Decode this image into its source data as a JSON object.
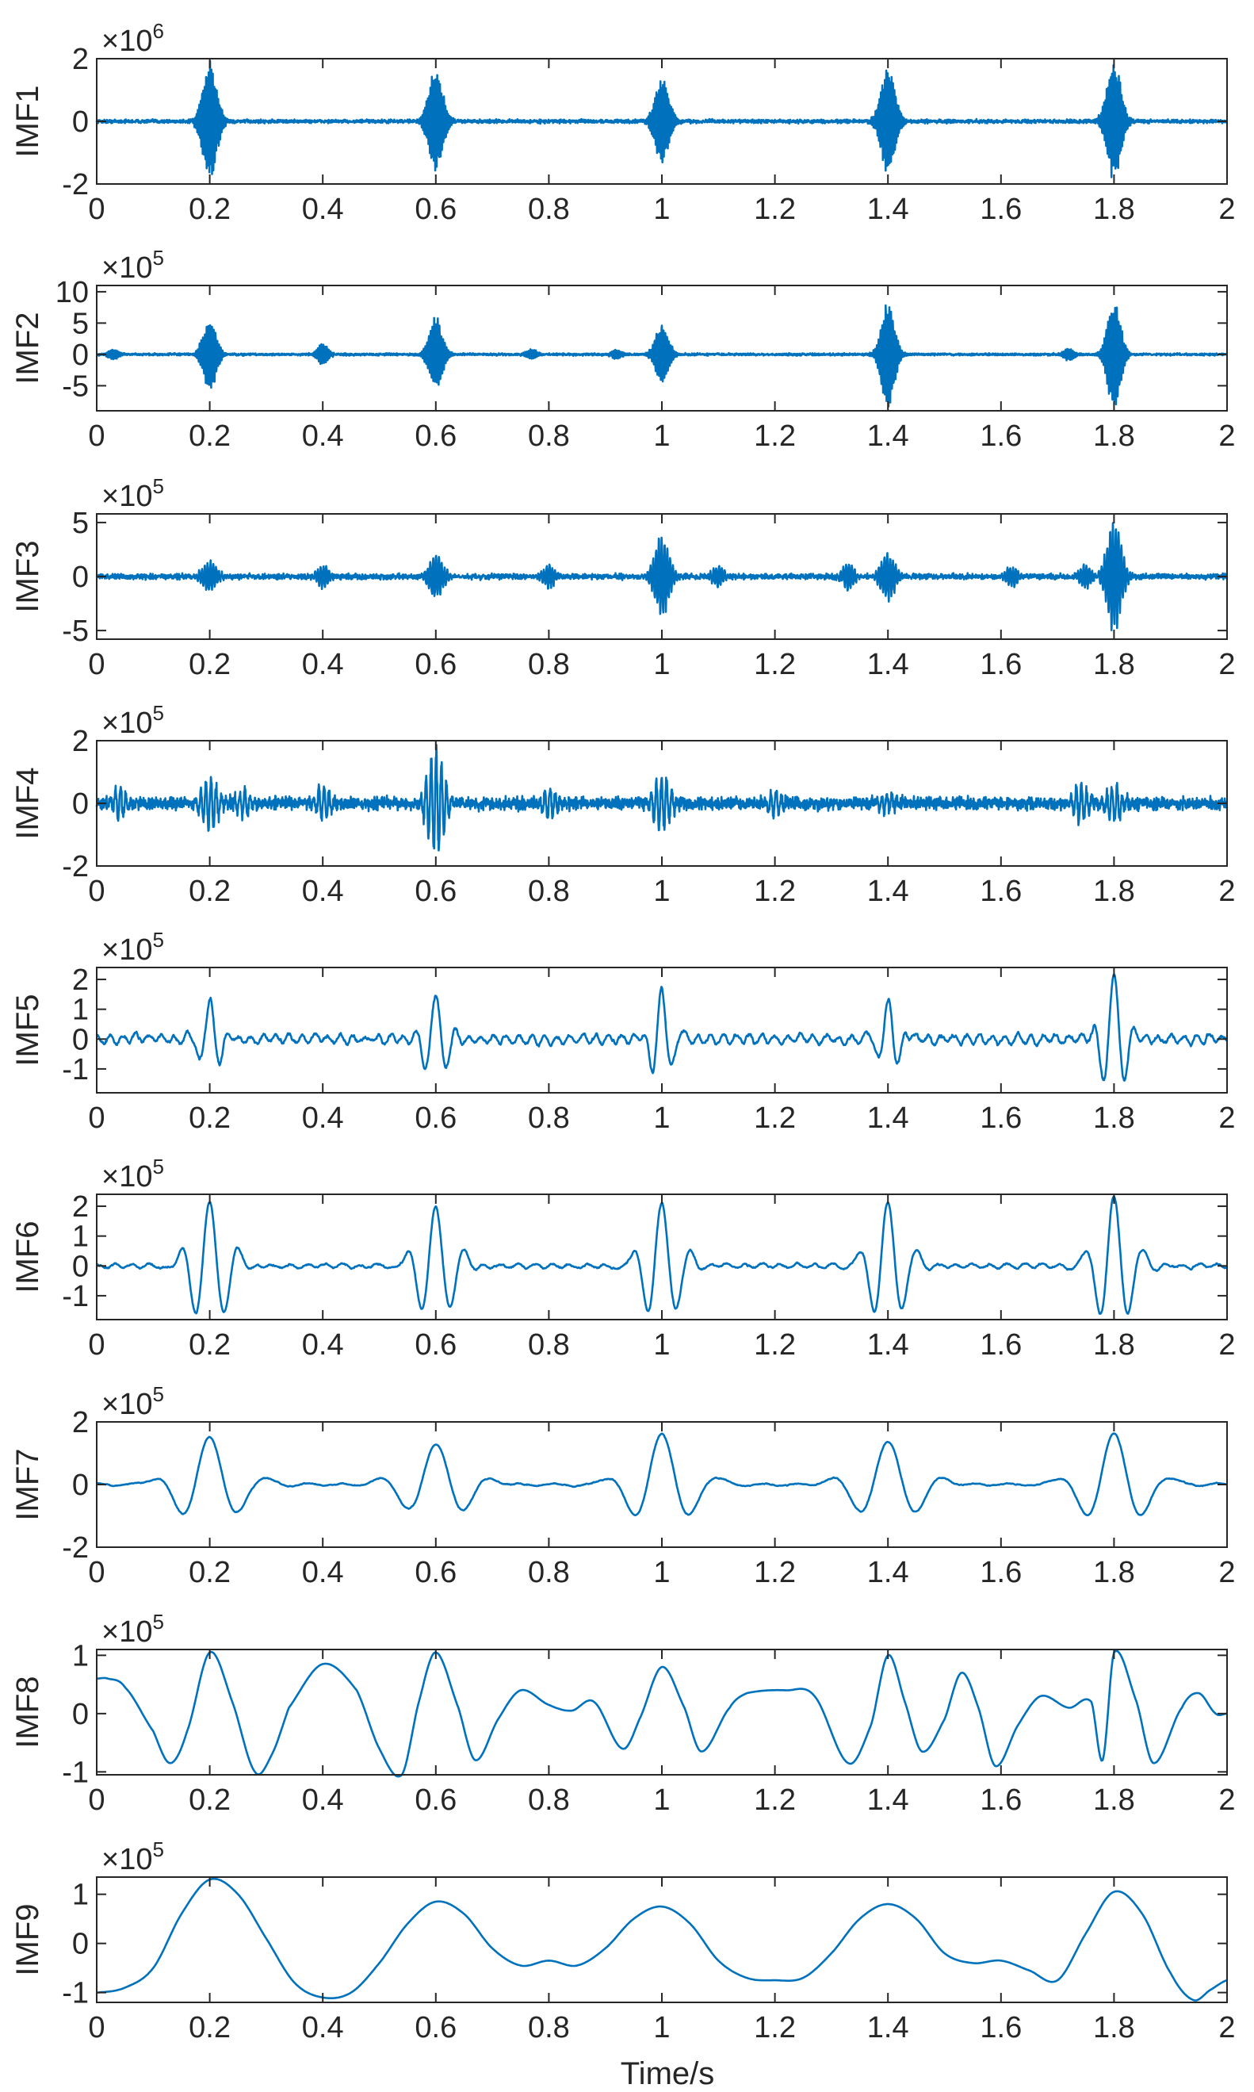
{
  "chart_data": {
    "type": "line",
    "layout": "stacked-subplots",
    "xlabel": "Time/s",
    "x_range": [
      0,
      2
    ],
    "x_ticks": [
      0,
      0.2,
      0.4,
      0.6,
      0.8,
      1,
      1.2,
      1.4,
      1.6,
      1.8,
      2
    ],
    "x_tick_labels": [
      "0",
      "0.2",
      "0.4",
      "0.6",
      "0.8",
      "1",
      "1.2",
      "1.4",
      "1.6",
      "1.8",
      "2"
    ],
    "line_color": "#0072BD",
    "impulse_times": [
      0.2,
      0.6,
      1.0,
      1.4,
      1.8
    ],
    "panels": [
      {
        "name": "IMF1",
        "ylabel": "IMF1",
        "multiplier": "×10",
        "exponent": "6",
        "ylim": [
          -2,
          2
        ],
        "yticks": [
          -2,
          0,
          2
        ],
        "ytick_labels": [
          "-2",
          "0",
          "2"
        ],
        "kind": "bursts",
        "noise": 0.08,
        "burst_amps": [
          1.95,
          1.75,
          1.4,
          1.75,
          1.95
        ],
        "burst_freq": 420,
        "burst_decay": 0.012,
        "small_bursts": []
      },
      {
        "name": "IMF2",
        "ylabel": "IMF2",
        "multiplier": "×10",
        "exponent": "5",
        "ylim": [
          -9,
          11
        ],
        "yticks": [
          -5,
          0,
          5,
          10
        ],
        "ytick_labels": [
          "-5",
          "0",
          "5",
          "10"
        ],
        "kind": "bursts",
        "noise": 0.25,
        "burst_amps": [
          6.0,
          6.2,
          5.0,
          9.0,
          9.0
        ],
        "burst_freq": 320,
        "burst_decay": 0.011,
        "small_bursts": [
          [
            0.4,
            1.6
          ],
          [
            0.03,
            0.8
          ],
          [
            0.77,
            0.7
          ],
          [
            0.92,
            0.7
          ],
          [
            1.72,
            0.9
          ]
        ]
      },
      {
        "name": "IMF3",
        "ylabel": "IMF3",
        "multiplier": "×10",
        "exponent": "5",
        "ylim": [
          -5.8,
          5.8
        ],
        "yticks": [
          -5,
          0,
          5
        ],
        "ytick_labels": [
          "-5",
          "0",
          "5"
        ],
        "kind": "bursts",
        "noise": 0.35,
        "burst_amps": [
          1.5,
          2.2,
          4.0,
          2.2,
          5.6
        ],
        "burst_freq": 200,
        "burst_decay": 0.012,
        "small_bursts": [
          [
            0.4,
            1.0
          ],
          [
            0.8,
            1.0
          ],
          [
            1.1,
            0.9
          ],
          [
            1.33,
            1.2
          ],
          [
            1.62,
            0.9
          ],
          [
            1.75,
            1.1
          ]
        ]
      },
      {
        "name": "IMF4",
        "ylabel": "IMF4",
        "multiplier": "×10",
        "exponent": "5",
        "ylim": [
          -2,
          2
        ],
        "yticks": [
          -2,
          0,
          2
        ],
        "ytick_labels": [
          "-2",
          "0",
          "2"
        ],
        "kind": "bursts",
        "noise": 0.28,
        "burst_amps": [
          0.85,
          1.8,
          0.95,
          0.3,
          0.6
        ],
        "burst_freq": 110,
        "burst_decay": 0.014,
        "small_bursts": [
          [
            0.04,
            0.5
          ],
          [
            0.26,
            0.4
          ],
          [
            0.4,
            0.5
          ],
          [
            0.8,
            0.5
          ],
          [
            1.2,
            0.4
          ],
          [
            1.74,
            0.6
          ]
        ]
      },
      {
        "name": "IMF5",
        "ylabel": "IMF5",
        "multiplier": "×10",
        "exponent": "5",
        "ylim": [
          -1.8,
          2.4
        ],
        "yticks": [
          -1,
          0,
          1,
          2
        ],
        "ytick_labels": [
          "-1",
          "0",
          "1",
          "2"
        ],
        "kind": "wavelet",
        "noise": 0.22,
        "burst_amps": [
          1.25,
          1.55,
          1.6,
          1.25,
          2.3
        ],
        "burst_freq": 26,
        "burst_decay": 0.018,
        "small_bursts": []
      },
      {
        "name": "IMF6",
        "ylabel": "IMF6",
        "multiplier": "×10",
        "exponent": "5",
        "ylim": [
          -1.8,
          2.4
        ],
        "yticks": [
          -1,
          0,
          1,
          2
        ],
        "ytick_labels": [
          "-1",
          "0",
          "1",
          "2"
        ],
        "kind": "wavelet",
        "noise": 0.1,
        "burst_amps": [
          2.2,
          2.0,
          2.1,
          2.1,
          2.3
        ],
        "burst_freq": 19,
        "burst_decay": 0.03,
        "small_bursts": []
      },
      {
        "name": "IMF7",
        "ylabel": "IMF7",
        "multiplier": "×10",
        "exponent": "5",
        "ylim": [
          -2,
          2
        ],
        "yticks": [
          -2,
          0,
          2
        ],
        "ytick_labels": [
          "-2",
          "0",
          "2"
        ],
        "kind": "wavelet",
        "noise": 0.05,
        "burst_amps": [
          1.5,
          1.3,
          1.6,
          1.4,
          1.6
        ],
        "burst_freq": 9.5,
        "burst_decay": 0.05,
        "small_bursts": []
      },
      {
        "name": "IMF8",
        "ylabel": "IMF8",
        "multiplier": "×10",
        "exponent": "5",
        "ylim": [
          -1.05,
          1.1
        ],
        "yticks": [
          -1,
          0,
          1
        ],
        "ytick_labels": [
          "-1",
          "0",
          "1"
        ],
        "kind": "smooth",
        "points": [
          [
            0,
            0.6
          ],
          [
            0.02,
            0.6
          ],
          [
            0.05,
            0.45
          ],
          [
            0.1,
            -0.3
          ],
          [
            0.13,
            -0.85
          ],
          [
            0.16,
            -0.3
          ],
          [
            0.2,
            1.05
          ],
          [
            0.24,
            0.2
          ],
          [
            0.28,
            -1.0
          ],
          [
            0.31,
            -0.7
          ],
          [
            0.34,
            0.1
          ],
          [
            0.4,
            0.85
          ],
          [
            0.46,
            0.4
          ],
          [
            0.5,
            -0.6
          ],
          [
            0.54,
            -1.05
          ],
          [
            0.57,
            0.2
          ],
          [
            0.6,
            1.05
          ],
          [
            0.64,
            0.1
          ],
          [
            0.67,
            -0.8
          ],
          [
            0.71,
            -0.1
          ],
          [
            0.75,
            0.4
          ],
          [
            0.8,
            0.15
          ],
          [
            0.84,
            0.05
          ],
          [
            0.88,
            0.2
          ],
          [
            0.93,
            -0.6
          ],
          [
            0.96,
            -0.1
          ],
          [
            1.0,
            0.8
          ],
          [
            1.04,
            0.1
          ],
          [
            1.07,
            -0.65
          ],
          [
            1.12,
            0.1
          ],
          [
            1.15,
            0.35
          ],
          [
            1.22,
            0.4
          ],
          [
            1.27,
            0.3
          ],
          [
            1.33,
            -0.85
          ],
          [
            1.37,
            -0.2
          ],
          [
            1.4,
            1.0
          ],
          [
            1.43,
            0.2
          ],
          [
            1.46,
            -0.65
          ],
          [
            1.5,
            -0.1
          ],
          [
            1.53,
            0.7
          ],
          [
            1.56,
            0.1
          ],
          [
            1.59,
            -0.9
          ],
          [
            1.63,
            -0.2
          ],
          [
            1.67,
            0.3
          ],
          [
            1.72,
            0.1
          ],
          [
            1.76,
            0.2
          ],
          [
            1.78,
            -0.8
          ],
          [
            1.8,
            1.05
          ],
          [
            1.84,
            0.2
          ],
          [
            1.87,
            -0.85
          ],
          [
            1.92,
            0.1
          ],
          [
            1.95,
            0.35
          ],
          [
            1.98,
            0.0
          ],
          [
            2.0,
            0.0
          ]
        ]
      },
      {
        "name": "IMF9",
        "ylabel": "IMF9",
        "multiplier": "×10",
        "exponent": "5",
        "ylim": [
          -1.2,
          1.35
        ],
        "yticks": [
          -1,
          0,
          1
        ],
        "ytick_labels": [
          "-1",
          "0",
          "1"
        ],
        "kind": "smooth",
        "points": [
          [
            0,
            -1.0
          ],
          [
            0.05,
            -0.9
          ],
          [
            0.1,
            -0.5
          ],
          [
            0.15,
            0.6
          ],
          [
            0.2,
            1.3
          ],
          [
            0.25,
            1.0
          ],
          [
            0.3,
            0.1
          ],
          [
            0.35,
            -0.8
          ],
          [
            0.4,
            -1.1
          ],
          [
            0.45,
            -1.0
          ],
          [
            0.5,
            -0.4
          ],
          [
            0.55,
            0.4
          ],
          [
            0.6,
            0.85
          ],
          [
            0.65,
            0.6
          ],
          [
            0.7,
            -0.1
          ],
          [
            0.75,
            -0.45
          ],
          [
            0.8,
            -0.35
          ],
          [
            0.85,
            -0.45
          ],
          [
            0.9,
            -0.1
          ],
          [
            0.95,
            0.5
          ],
          [
            1.0,
            0.75
          ],
          [
            1.05,
            0.4
          ],
          [
            1.1,
            -0.35
          ],
          [
            1.15,
            -0.7
          ],
          [
            1.2,
            -0.75
          ],
          [
            1.25,
            -0.7
          ],
          [
            1.3,
            -0.2
          ],
          [
            1.35,
            0.5
          ],
          [
            1.4,
            0.8
          ],
          [
            1.45,
            0.5
          ],
          [
            1.5,
            -0.2
          ],
          [
            1.55,
            -0.4
          ],
          [
            1.6,
            -0.35
          ],
          [
            1.65,
            -0.55
          ],
          [
            1.7,
            -0.75
          ],
          [
            1.75,
            0.2
          ],
          [
            1.8,
            1.05
          ],
          [
            1.85,
            0.6
          ],
          [
            1.9,
            -0.6
          ],
          [
            1.94,
            -1.15
          ],
          [
            1.97,
            -0.95
          ],
          [
            2.0,
            -0.75
          ]
        ]
      }
    ]
  }
}
